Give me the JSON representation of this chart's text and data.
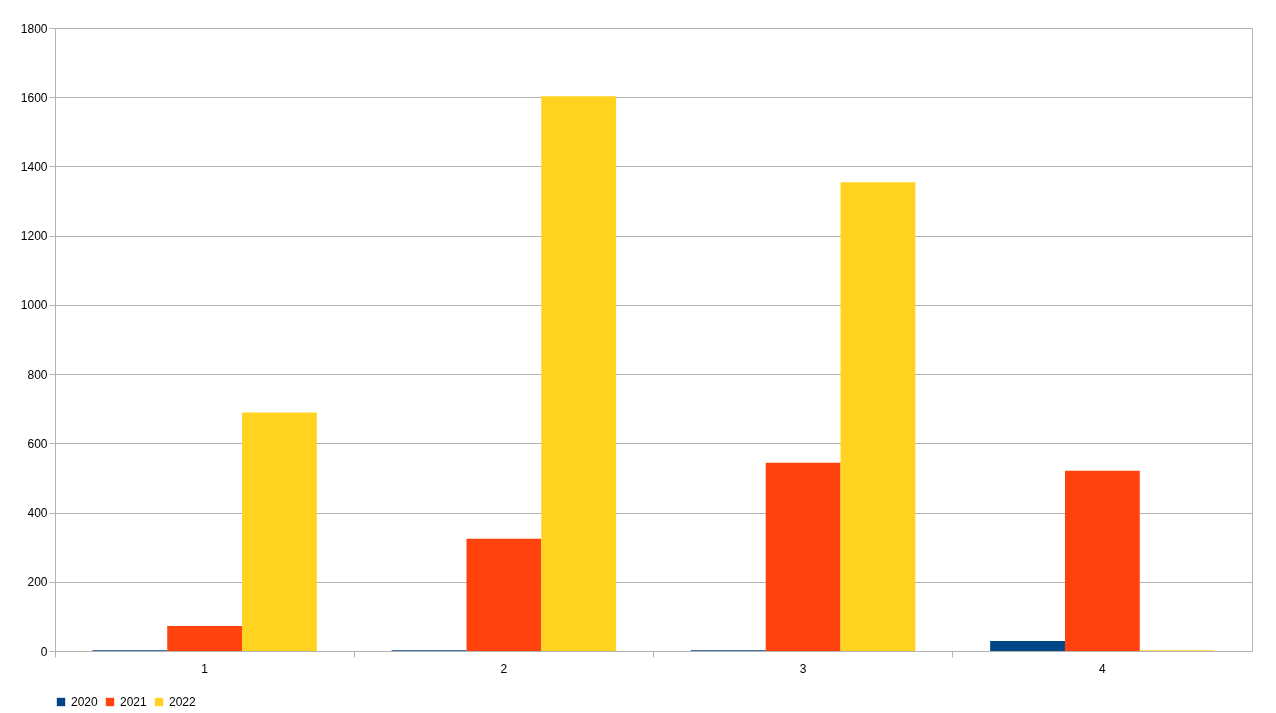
{
  "chart_data": {
    "type": "bar",
    "categories": [
      "1",
      "2",
      "3",
      "4"
    ],
    "series": [
      {
        "name": "2020",
        "color": "#004586",
        "values": [
          2,
          2,
          2,
          29
        ]
      },
      {
        "name": "2021",
        "color": "#ff420e",
        "values": [
          72,
          324,
          544,
          521
        ]
      },
      {
        "name": "2022",
        "color": "#ffd320",
        "values": [
          689,
          1603,
          1354,
          2
        ]
      }
    ],
    "ylim": [
      0,
      1800
    ],
    "yticks": [
      0,
      200,
      400,
      600,
      800,
      1000,
      1200,
      1400,
      1600,
      1800
    ],
    "grid": "y",
    "legend": "bottom"
  }
}
